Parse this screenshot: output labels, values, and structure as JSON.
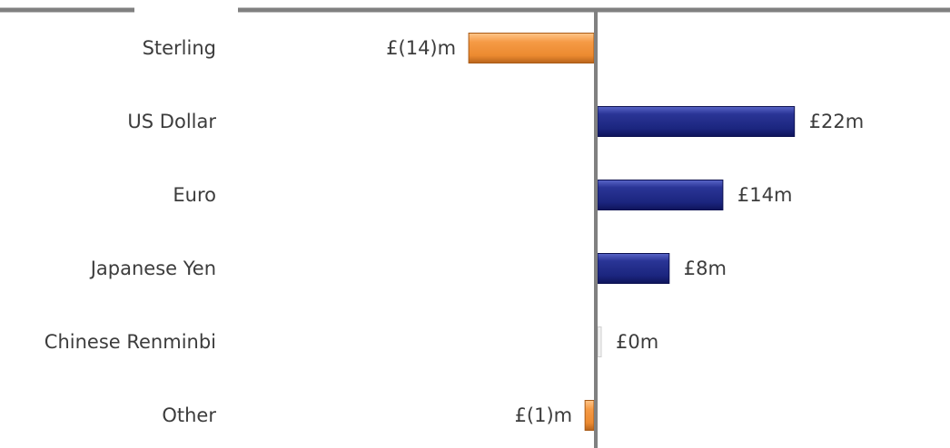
{
  "chart_data": {
    "type": "bar",
    "orientation": "horizontal",
    "categories": [
      "Sterling",
      "US Dollar",
      "Euro",
      "Japanese Yen",
      "Chinese Renminbi",
      "Other"
    ],
    "values": [
      -14,
      22,
      14,
      8,
      0,
      -1
    ],
    "labels": [
      "£(14)m",
      "£22m",
      "£14m",
      "£8m",
      "£0m",
      "£(1)m"
    ],
    "units": "£m",
    "colors": {
      "positive": "#1f2a8a",
      "negative": "#f0913a",
      "axis": "#808080"
    }
  }
}
